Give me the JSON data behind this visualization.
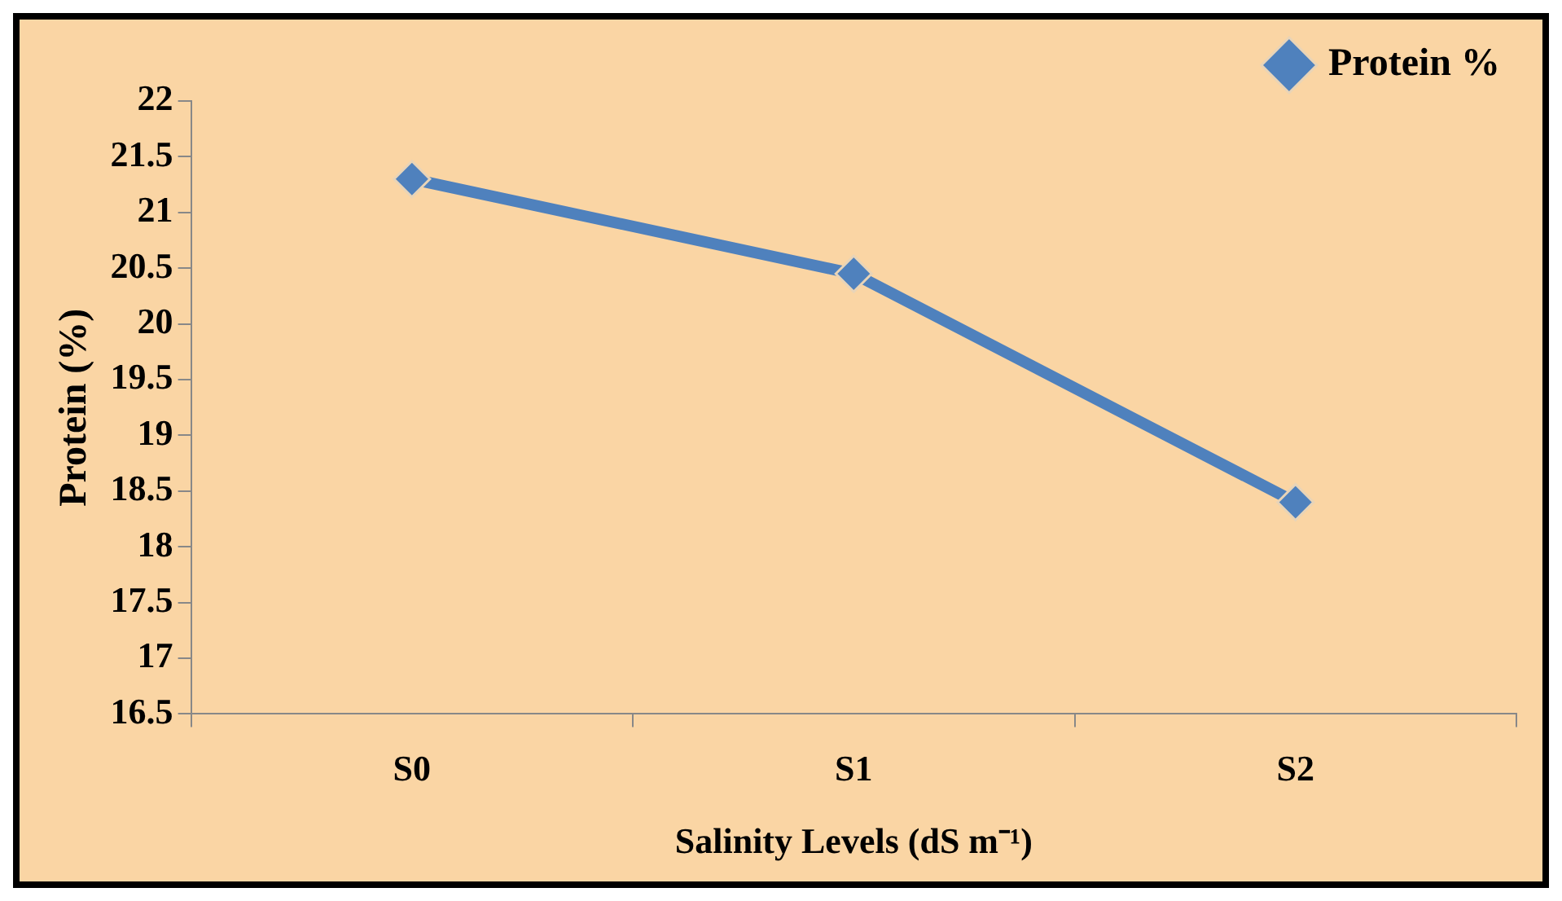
{
  "chart_data": {
    "type": "line",
    "xlabel": "Salinity Levels (dS m⁻¹)",
    "ylabel": "Protein (%)",
    "categories": [
      "S0",
      "S1",
      "S2"
    ],
    "series": [
      {
        "name": "Protein %",
        "color": "#4f81bd",
        "values": [
          21.3,
          20.45,
          18.4
        ]
      }
    ],
    "ylim": [
      16.5,
      22
    ],
    "yticks": [
      16.5,
      17,
      17.5,
      18,
      18.5,
      19,
      19.5,
      20,
      20.5,
      21,
      21.5,
      22
    ],
    "grid": false,
    "legend": "top right",
    "marker": "diamond",
    "line_style": "solid"
  }
}
